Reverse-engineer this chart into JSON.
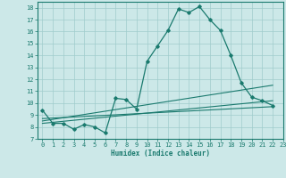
{
  "xlabel": "Humidex (Indice chaleur)",
  "bg_color": "#cce8e8",
  "line_color": "#1a7a6e",
  "grid_color": "#a0cccc",
  "xlim": [
    -0.5,
    23
  ],
  "ylim": [
    7,
    18.5
  ],
  "yticks": [
    7,
    8,
    9,
    10,
    11,
    12,
    13,
    14,
    15,
    16,
    17,
    18
  ],
  "xticks": [
    0,
    1,
    2,
    3,
    4,
    5,
    6,
    7,
    8,
    9,
    10,
    11,
    12,
    13,
    14,
    15,
    16,
    17,
    18,
    19,
    20,
    21,
    22,
    23
  ],
  "line1_x": [
    0,
    1,
    2,
    3,
    4,
    5,
    6,
    7,
    8,
    9,
    10,
    11,
    12,
    13,
    14,
    15,
    16,
    17,
    18,
    19,
    20,
    21,
    22
  ],
  "line1_y": [
    9.4,
    8.3,
    8.3,
    7.8,
    8.2,
    8.0,
    7.5,
    10.4,
    10.3,
    9.5,
    13.5,
    14.8,
    16.1,
    17.9,
    17.6,
    18.1,
    17.0,
    16.1,
    14.0,
    11.7,
    10.5,
    10.2,
    9.8
  ],
  "line2_x": [
    0,
    22
  ],
  "line2_y": [
    8.7,
    9.7
  ],
  "line3_x": [
    0,
    22
  ],
  "line3_y": [
    8.5,
    11.5
  ],
  "line4_x": [
    0,
    22
  ],
  "line4_y": [
    8.3,
    10.2
  ]
}
